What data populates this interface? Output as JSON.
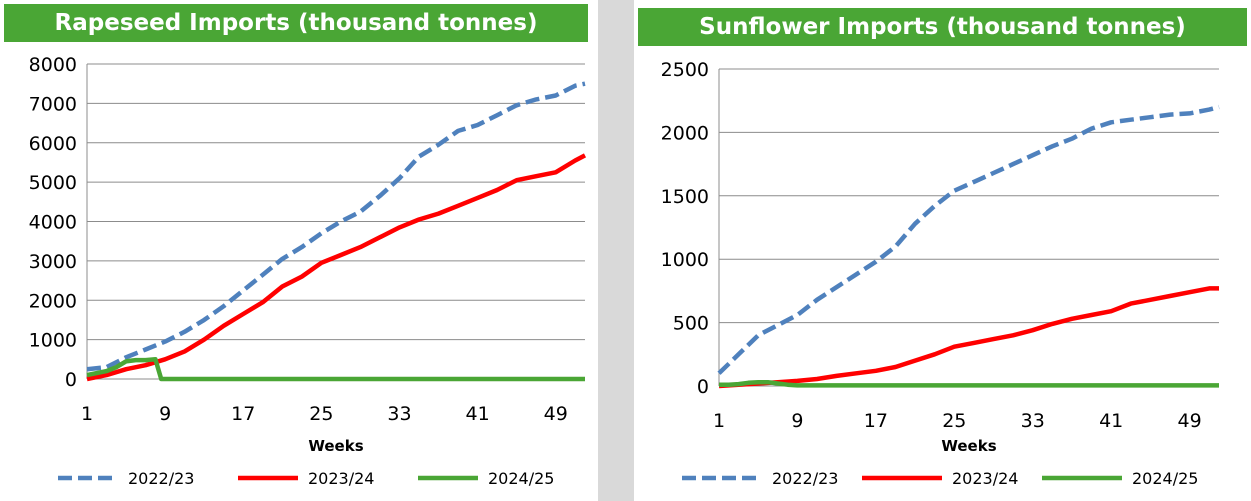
{
  "chart_data": [
    {
      "type": "line",
      "title": "Rapeseed Imports (thousand tonnes)",
      "xlabel": "Weeks",
      "ylabel": "",
      "ylim": [
        0,
        8000
      ],
      "xlim": [
        1,
        52
      ],
      "yticks": [
        0,
        1000,
        2000,
        3000,
        4000,
        5000,
        6000,
        7000,
        8000
      ],
      "xticks": [
        1,
        9,
        17,
        25,
        33,
        41,
        49
      ],
      "grid": true,
      "legend": "bottom",
      "series": [
        {
          "name": "2022/23",
          "color": "#4f81bd",
          "dash": "dashed",
          "x": [
            1,
            3,
            5,
            7,
            9,
            11,
            13,
            15,
            17,
            19,
            21,
            23,
            25,
            27,
            29,
            31,
            33,
            35,
            37,
            39,
            41,
            43,
            45,
            47,
            49,
            51,
            52
          ],
          "y": [
            250,
            300,
            550,
            750,
            950,
            1200,
            1500,
            1850,
            2250,
            2650,
            3050,
            3350,
            3700,
            4000,
            4250,
            4650,
            5100,
            5650,
            5950,
            6300,
            6450,
            6700,
            6950,
            7100,
            7200,
            7450,
            7500
          ]
        },
        {
          "name": "2023/24",
          "color": "#ff0000",
          "dash": "solid",
          "x": [
            1,
            3,
            5,
            7,
            9,
            11,
            13,
            15,
            17,
            19,
            21,
            23,
            25,
            27,
            29,
            31,
            33,
            35,
            37,
            39,
            41,
            43,
            45,
            47,
            49,
            51,
            52
          ],
          "y": [
            0,
            100,
            250,
            350,
            500,
            700,
            1000,
            1350,
            1650,
            1950,
            2350,
            2600,
            2950,
            3150,
            3350,
            3600,
            3850,
            4050,
            4200,
            4400,
            4600,
            4800,
            5050,
            5150,
            5250,
            5550,
            5680
          ]
        },
        {
          "name": "2024/25",
          "color": "#4aa635",
          "dash": "solid",
          "x": [
            1,
            2,
            3,
            4,
            5,
            6,
            7,
            8,
            8.6,
            9,
            52
          ],
          "y": [
            100,
            150,
            200,
            300,
            450,
            480,
            480,
            500,
            0,
            0,
            0
          ]
        }
      ]
    },
    {
      "type": "line",
      "title": "Sunflower Imports (thousand tonnes)",
      "xlabel": "Weeks",
      "ylabel": "",
      "ylim": [
        0,
        2500
      ],
      "xlim": [
        1,
        52
      ],
      "yticks": [
        0,
        500,
        1000,
        1500,
        2000,
        2500
      ],
      "xticks": [
        1,
        9,
        17,
        25,
        33,
        41,
        49
      ],
      "grid": true,
      "legend": "bottom",
      "series": [
        {
          "name": "2022/23",
          "color": "#4f81bd",
          "dash": "dashed",
          "x": [
            1,
            3,
            5,
            7,
            9,
            11,
            13,
            15,
            17,
            19,
            21,
            23,
            25,
            27,
            29,
            31,
            33,
            35,
            37,
            39,
            41,
            43,
            45,
            47,
            49,
            51,
            52
          ],
          "y": [
            100,
            250,
            400,
            480,
            560,
            680,
            780,
            880,
            980,
            1100,
            1280,
            1420,
            1540,
            1610,
            1680,
            1750,
            1820,
            1890,
            1950,
            2030,
            2080,
            2100,
            2120,
            2140,
            2150,
            2180,
            2200
          ]
        },
        {
          "name": "2023/24",
          "color": "#ff0000",
          "dash": "solid",
          "x": [
            1,
            3,
            5,
            7,
            9,
            11,
            13,
            15,
            17,
            19,
            21,
            23,
            25,
            27,
            29,
            31,
            33,
            35,
            37,
            39,
            41,
            43,
            45,
            47,
            49,
            51,
            52
          ],
          "y": [
            0,
            10,
            20,
            30,
            40,
            55,
            80,
            100,
            120,
            150,
            200,
            250,
            310,
            340,
            370,
            400,
            440,
            490,
            530,
            560,
            590,
            650,
            680,
            710,
            740,
            770,
            770
          ]
        },
        {
          "name": "2024/25",
          "color": "#4aa635",
          "dash": "solid",
          "x": [
            1,
            2,
            3,
            4,
            5,
            6,
            7,
            8,
            9,
            52
          ],
          "y": [
            10,
            10,
            15,
            25,
            30,
            30,
            20,
            10,
            5,
            5
          ]
        }
      ]
    }
  ]
}
